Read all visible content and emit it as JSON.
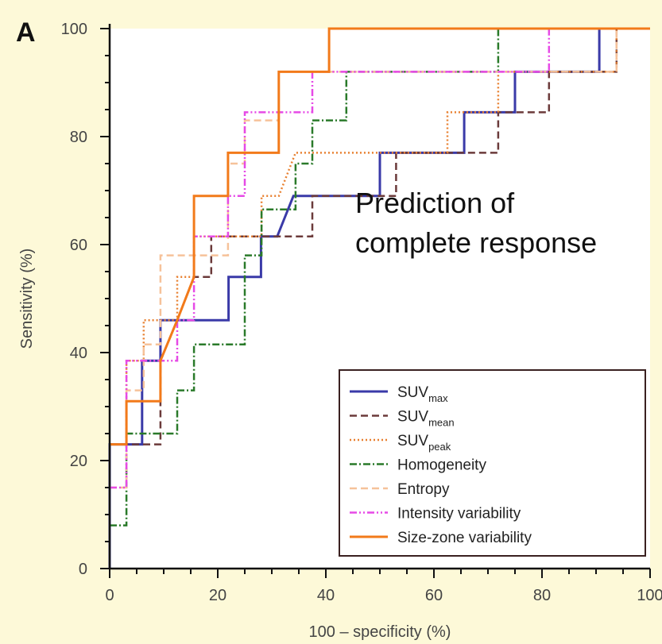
{
  "chart_data": {
    "type": "line",
    "panel_label": "A",
    "xlabel": "100 – specificity (%)",
    "ylabel": "Sensitivity (%)",
    "xlim": [
      0,
      100
    ],
    "ylim": [
      0,
      100
    ],
    "xticks": [
      0,
      20,
      40,
      60,
      80,
      100
    ],
    "yticks": [
      0,
      20,
      40,
      60,
      80,
      100
    ],
    "grid": false,
    "annotation": [
      "Prediction of",
      "complete response"
    ],
    "legend": {
      "placement": "bottom-right"
    },
    "series": [
      {
        "name": "SUVmax",
        "base": "SUV",
        "sub": "max",
        "color": "#3a3aa8",
        "dash": "",
        "width": 3,
        "points": [
          [
            0,
            0
          ],
          [
            0,
            23
          ],
          [
            6,
            23
          ],
          [
            6,
            38.5
          ],
          [
            9.4,
            38.5
          ],
          [
            9.4,
            46
          ],
          [
            22,
            46
          ],
          [
            22,
            54
          ],
          [
            28,
            54
          ],
          [
            28,
            61.5
          ],
          [
            31,
            61.5
          ],
          [
            34,
            69
          ],
          [
            50,
            69
          ],
          [
            50,
            77
          ],
          [
            65.6,
            77
          ],
          [
            65.6,
            84.5
          ],
          [
            75,
            84.5
          ],
          [
            75,
            92
          ],
          [
            90.6,
            92
          ],
          [
            90.6,
            100
          ],
          [
            100,
            100
          ]
        ]
      },
      {
        "name": "SUVmean",
        "base": "SUV",
        "sub": "mean",
        "color": "#6b3a3a",
        "dash": "9,5",
        "width": 2.5,
        "points": [
          [
            0,
            23
          ],
          [
            9.4,
            23
          ],
          [
            9.4,
            38.5
          ],
          [
            12.5,
            46
          ],
          [
            15.6,
            54
          ],
          [
            18.8,
            54
          ],
          [
            18.8,
            61.5
          ],
          [
            37.5,
            61.5
          ],
          [
            37.5,
            69
          ],
          [
            53,
            69
          ],
          [
            53,
            77
          ],
          [
            65.6,
            77
          ],
          [
            71.9,
            77
          ],
          [
            71.9,
            84.5
          ],
          [
            81.3,
            84.5
          ],
          [
            81.3,
            92
          ],
          [
            93.8,
            92
          ],
          [
            93.8,
            100
          ],
          [
            100,
            100
          ]
        ]
      },
      {
        "name": "SUVpeak",
        "base": "SUV",
        "sub": "peak",
        "color": "#e88030",
        "dash": "2,3",
        "width": 2.5,
        "points": [
          [
            0,
            23
          ],
          [
            3.1,
            23
          ],
          [
            3.1,
            38.5
          ],
          [
            6.3,
            38.5
          ],
          [
            6.3,
            46
          ],
          [
            9.4,
            46
          ],
          [
            12.5,
            46
          ],
          [
            12.5,
            54
          ],
          [
            15.6,
            54
          ],
          [
            15.6,
            61.5
          ],
          [
            28.1,
            61.5
          ],
          [
            28.1,
            69
          ],
          [
            31.3,
            69
          ],
          [
            34.4,
            77
          ],
          [
            62.5,
            77
          ],
          [
            62.5,
            84.5
          ],
          [
            71.9,
            84.5
          ],
          [
            71.9,
            92
          ],
          [
            93.8,
            92
          ],
          [
            93.8,
            100
          ],
          [
            100,
            100
          ]
        ]
      },
      {
        "name": "Homogeneity",
        "base": "Homogeneity",
        "sub": "",
        "color": "#2a7a2a",
        "dash": "9,3,2,3",
        "width": 2.5,
        "points": [
          [
            0,
            8
          ],
          [
            3.1,
            8
          ],
          [
            3.1,
            25
          ],
          [
            12.5,
            25
          ],
          [
            12.5,
            33
          ],
          [
            15.6,
            33
          ],
          [
            15.6,
            41.5
          ],
          [
            25,
            41.5
          ],
          [
            25,
            58
          ],
          [
            28.1,
            58
          ],
          [
            28.1,
            66.5
          ],
          [
            34.4,
            66.5
          ],
          [
            34.4,
            75
          ],
          [
            37.5,
            75
          ],
          [
            37.5,
            83
          ],
          [
            43.8,
            83
          ],
          [
            43.8,
            92
          ],
          [
            71.9,
            92
          ],
          [
            71.9,
            100
          ],
          [
            100,
            100
          ]
        ]
      },
      {
        "name": "Entropy",
        "base": "Entropy",
        "sub": "",
        "color": "#f6c29a",
        "dash": "9,5",
        "width": 2.5,
        "points": [
          [
            0,
            15
          ],
          [
            3.1,
            15
          ],
          [
            3.1,
            33
          ],
          [
            6.3,
            33
          ],
          [
            6.3,
            41.5
          ],
          [
            9.4,
            41.5
          ],
          [
            9.4,
            58
          ],
          [
            21.9,
            58
          ],
          [
            21.9,
            75
          ],
          [
            25,
            75
          ],
          [
            25,
            83
          ],
          [
            31.3,
            83
          ],
          [
            31.3,
            92
          ],
          [
            93.8,
            92
          ],
          [
            93.8,
            100
          ],
          [
            100,
            100
          ]
        ]
      },
      {
        "name": "Intensity variability",
        "base": "Intensity variability",
        "sub": "",
        "color": "#e64ae6",
        "dash": "9,3,2,3,2,3",
        "width": 2.5,
        "points": [
          [
            0,
            15
          ],
          [
            3.1,
            15
          ],
          [
            3.1,
            38.5
          ],
          [
            12.5,
            38.5
          ],
          [
            12.5,
            46
          ],
          [
            15.6,
            46
          ],
          [
            15.6,
            61.5
          ],
          [
            21.9,
            61.5
          ],
          [
            21.9,
            69
          ],
          [
            25,
            69
          ],
          [
            25,
            84.5
          ],
          [
            37.5,
            84.5
          ],
          [
            37.5,
            92
          ],
          [
            81.3,
            92
          ],
          [
            81.3,
            100
          ],
          [
            100,
            100
          ]
        ]
      },
      {
        "name": "Size-zone variability",
        "base": "Size-zone variability",
        "sub": "",
        "color": "#f27a1a",
        "dash": "",
        "width": 3,
        "points": [
          [
            0,
            23
          ],
          [
            3.1,
            23
          ],
          [
            3.1,
            31
          ],
          [
            9.4,
            31
          ],
          [
            9.4,
            38.5
          ],
          [
            12.5,
            46
          ],
          [
            15.6,
            54
          ],
          [
            15.6,
            69
          ],
          [
            21.9,
            69
          ],
          [
            21.9,
            77
          ],
          [
            31.3,
            77
          ],
          [
            31.3,
            92
          ],
          [
            40.6,
            92
          ],
          [
            40.6,
            100
          ],
          [
            100,
            100
          ]
        ]
      }
    ]
  }
}
